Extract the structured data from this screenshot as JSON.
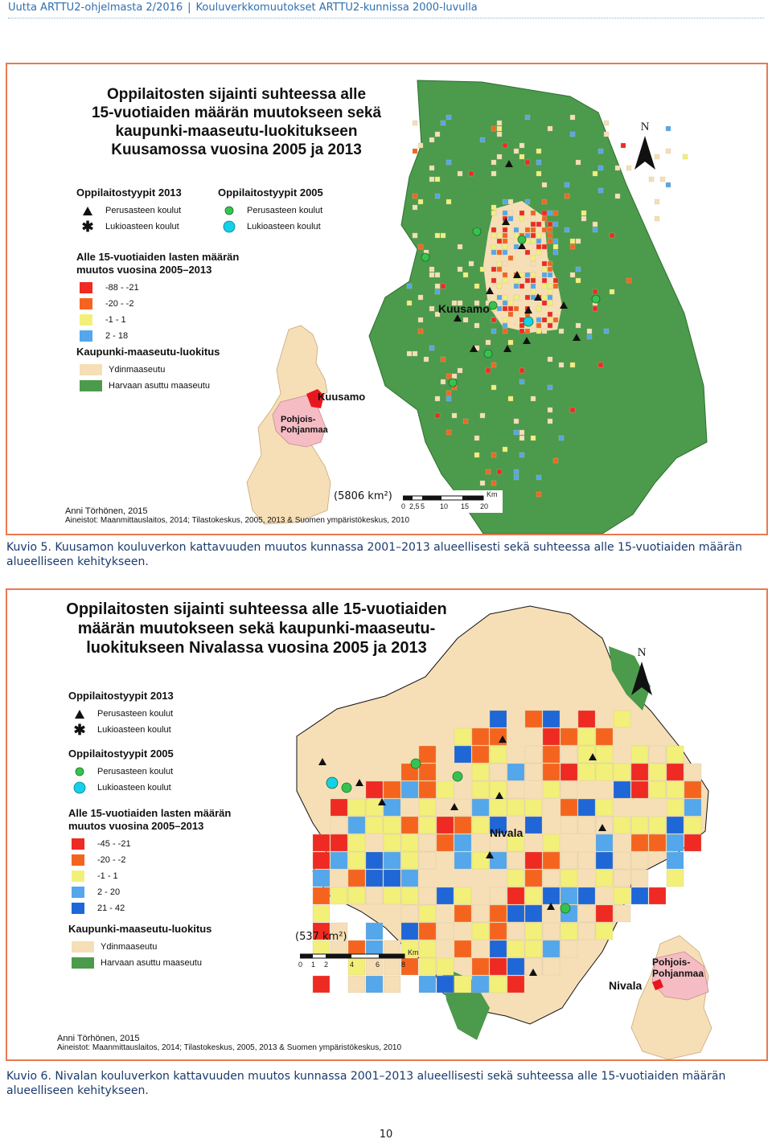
{
  "header": {
    "series": "Uutta ARTTU2-ohjelmasta 2/2016",
    "separator": "|",
    "title": "Kouluverkkomuutokset ARTTU2-kunnissa 2000-luvulla"
  },
  "colors": {
    "frame": "#e87a4f",
    "sparse_rural": "#4c9a4c",
    "core_rural": "#f6dfb6",
    "decrease_large": "#ee2a22",
    "decrease": "#f5641e",
    "stable": "#f3f07a",
    "increase": "#53a7ea",
    "increase_large": "#1f66d6",
    "municipality": "#e8171f",
    "region": "#f5bcc4",
    "finland": "#f6dfb6"
  },
  "kuusamo": {
    "title": "Oppilaitosten sijainti suhteessa alle 15-vuotiaiden määrän muutokseen sekä kaupunki-maaseutu-luokitukseen Kuusamossa vuosina 2005 ja 2013",
    "title_lines": [
      "Oppilaitosten sijainti suhteessa alle",
      "15-vuotiaiden määrän muutokseen sekä",
      "kaupunki-maaseutu-luokitukseen",
      "Kuusamossa vuosina 2005 ja 2013"
    ],
    "legend_2013": {
      "heading": "Oppilaitostyypit 2013",
      "primary": "Perusasteen koulut",
      "upper": "Lukioasteen koulut"
    },
    "legend_2005": {
      "heading": "Oppilaitostyypit 2005",
      "primary": "Perusasteen koulut",
      "upper": "Lukioasteen koulut"
    },
    "change": {
      "heading_lines": [
        "Alle 15-vuotiaiden lasten määrän",
        "muutos vuosina 2005–2013"
      ],
      "classes": [
        "-88 - -21",
        "-20 - -2",
        "-1 - 1",
        "2 - 18"
      ]
    },
    "urban_rural": {
      "heading": "Kaupunki-maaseutu-luokitus",
      "core": "Ydinmaaseutu",
      "sparse": "Harvaan asuttu maaseutu"
    },
    "place": "Kuusamo",
    "inset": {
      "municipality": "Kuusamo",
      "region_lines": [
        "Pohjois-",
        "Pohjanmaa"
      ]
    },
    "area": "(5806 km²)",
    "scale": {
      "unit": "Km",
      "ticks": [
        "0",
        "2,5",
        "5",
        "10",
        "15",
        "20"
      ]
    },
    "north": "N",
    "author": "Anni Törhönen, 2015",
    "sources": "Aineistot: Maanmittauslaitos, 2014; Tilastokeskus, 2005, 2013 & Suomen ympäristökeskus, 2010",
    "caption": "Kuvio 5. Kuusamon kouluverkon kattavuuden muutos kunnassa 2001–2013 alueellisesti sekä suhteessa alle 15-vuotiaiden määrän alueelliseen kehitykseen."
  },
  "nivala": {
    "title": "Oppilaitosten sijainti suhteessa alle 15-vuotiaiden määrän muutokseen sekä kaupunki-maaseutu-luokitukseen Nivalassa vuosina 2005 ja 2013",
    "title_lines": [
      "Oppilaitosten sijainti suhteessa alle 15-vuotiaiden",
      "määrän muutokseen sekä kaupunki-maaseutu-",
      "luokitukseen Nivalassa vuosina 2005 ja 2013"
    ],
    "legend_2013": {
      "heading": "Oppilaitostyypit 2013",
      "primary": "Perusasteen koulut",
      "upper": "Lukioasteen koulut"
    },
    "legend_2005": {
      "heading": "Oppilaitostyypit 2005",
      "primary": "Perusasteen koulut",
      "upper": "Lukioasteen koulut"
    },
    "change": {
      "heading_lines": [
        "Alle 15-vuotiaiden lasten määrän",
        "muutos vuosina 2005–2013"
      ],
      "classes": [
        "-45 - -21",
        "-20 - -2",
        "-1 - 1",
        "2 - 20",
        "21 - 42"
      ]
    },
    "urban_rural": {
      "heading": "Kaupunki-maaseutu-luokitus",
      "core": "Ydinmaaseutu",
      "sparse": "Harvaan asuttu maaseutu"
    },
    "place": "Nivala",
    "inset": {
      "municipality": "Nivala",
      "region_lines": [
        "Pohjois-",
        "Pohjanmaa"
      ]
    },
    "area": "(537 km²)",
    "scale": {
      "unit": "Km",
      "ticks": [
        "0",
        "1",
        "2",
        "4",
        "6",
        "8"
      ]
    },
    "north": "N",
    "author": "Anni Törhönen, 2015",
    "sources": "Aineistot: Maanmittauslaitos, 2014; Tilastokeskus, 2005, 2013 & Suomen ympäristökeskus, 2010",
    "caption": "Kuvio 6. Nivalan kouluverkon kattavuuden muutos kunnassa 2001–2013 alueellisesti sekä suhteessa alle 15-vuotiaiden määrän alueelliseen kehitykseen."
  },
  "page_number": "10"
}
